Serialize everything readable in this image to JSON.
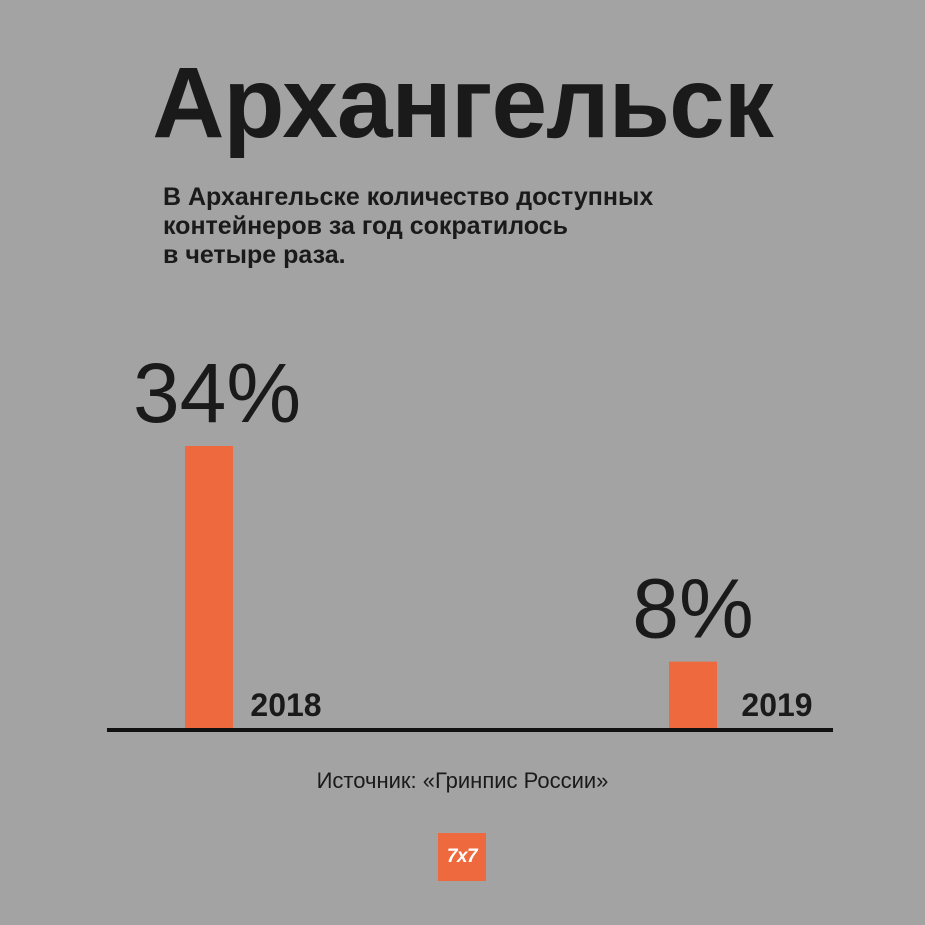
{
  "header": {
    "title": "Архангельск",
    "subtitle": "В Архангельске количество доступных\nконтейнеров за год сократилось\nв четыре раза."
  },
  "chart_data": {
    "type": "bar",
    "categories": [
      "2018",
      "2019"
    ],
    "values": [
      34,
      8
    ],
    "value_labels": [
      "34%",
      "8%"
    ],
    "ylim": [
      0,
      40
    ],
    "grid": false,
    "bar_color": "#ee6a3e"
  },
  "footer": {
    "source": "Источник: «Гринпис России»",
    "logo": "7x7"
  },
  "colors": {
    "background": "#a3a3a3",
    "accent": "#ee6a3e",
    "text": "#1a1a1a"
  }
}
